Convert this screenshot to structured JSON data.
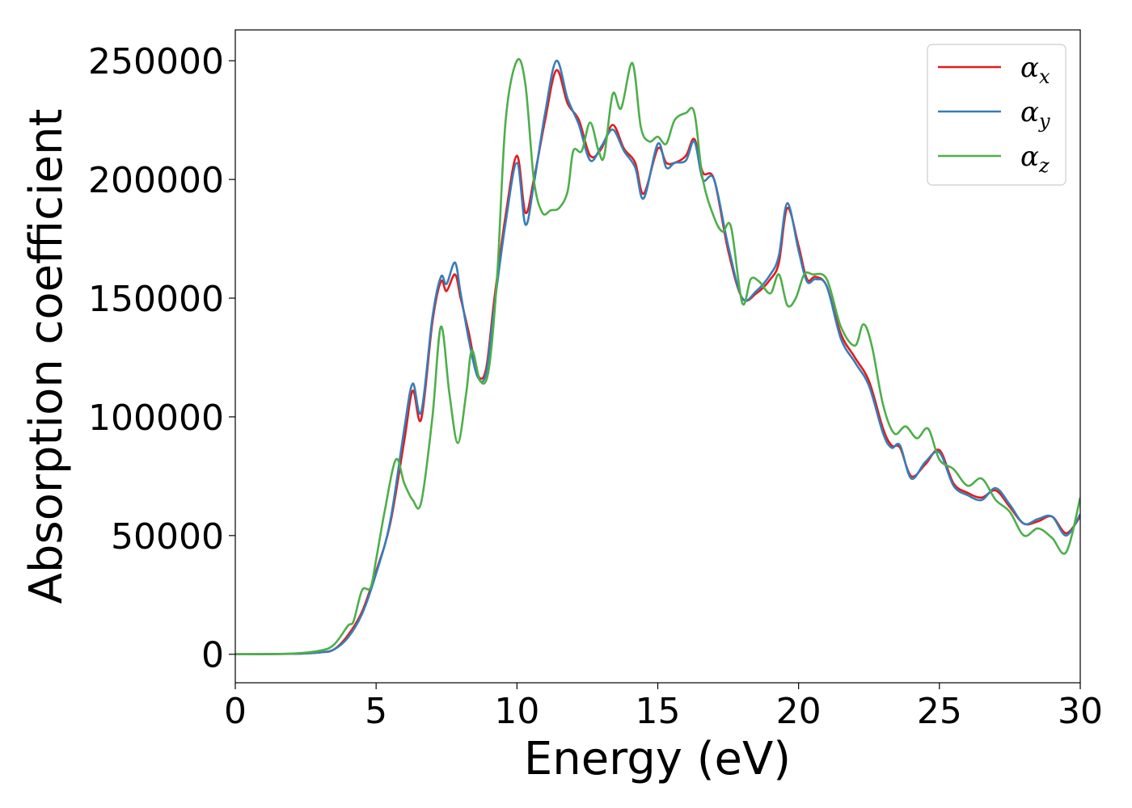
{
  "chart_data": {
    "type": "line",
    "title": "",
    "xlabel": "Energy (eV)",
    "ylabel": "Absorption coefficient",
    "xlim": [
      0,
      30
    ],
    "ylim": [
      -12000,
      263000
    ],
    "xticks": [
      0,
      5,
      10,
      15,
      20,
      25,
      30
    ],
    "yticks": [
      0,
      50000,
      100000,
      150000,
      200000,
      250000
    ],
    "grid": false,
    "legend_position": "top-right",
    "series": [
      {
        "name": "α",
        "subscript": "x",
        "color": "#e41a1c",
        "x": [
          0,
          2,
          3,
          3.5,
          4,
          4.5,
          5,
          5.5,
          6,
          6.3,
          6.6,
          7,
          7.3,
          7.5,
          7.8,
          8,
          8.3,
          8.6,
          8.9,
          9.2,
          9.6,
          10,
          10.3,
          10.6,
          11,
          11.4,
          11.8,
          12.2,
          12.6,
          13,
          13.4,
          13.8,
          14.2,
          14.5,
          15,
          15.3,
          15.6,
          16,
          16.3,
          16.6,
          17,
          17.5,
          18,
          18.5,
          19,
          19.3,
          19.6,
          20,
          20.3,
          20.6,
          21,
          21.5,
          22,
          22.5,
          23,
          23.3,
          23.6,
          24,
          24.5,
          25,
          25.5,
          26,
          26.5,
          27,
          27.5,
          28,
          28.5,
          29,
          29.5,
          30
        ],
        "y": [
          0,
          200,
          800,
          2000,
          8000,
          18000,
          35000,
          55000,
          90000,
          111000,
          99000,
          140000,
          157000,
          153000,
          160000,
          150000,
          135000,
          118000,
          120000,
          150000,
          185000,
          210000,
          186000,
          200000,
          225000,
          246000,
          232000,
          225000,
          210000,
          213000,
          223000,
          213000,
          207000,
          194000,
          213000,
          207000,
          207000,
          210000,
          217000,
          203000,
          200000,
          170000,
          150000,
          152000,
          158000,
          165000,
          188000,
          172000,
          158000,
          159000,
          155000,
          135000,
          125000,
          115000,
          95000,
          88000,
          87000,
          75000,
          80000,
          86000,
          72000,
          68000,
          66000,
          69000,
          62000,
          55000,
          56000,
          58000,
          51000,
          58000
        ]
      },
      {
        "name": "α",
        "subscript": "y",
        "color": "#377eb8",
        "x": [
          0,
          2,
          3,
          3.5,
          4,
          4.5,
          5,
          5.5,
          6,
          6.3,
          6.6,
          7,
          7.3,
          7.5,
          7.8,
          8,
          8.3,
          8.6,
          8.9,
          9.2,
          9.6,
          10,
          10.3,
          10.6,
          11,
          11.4,
          11.8,
          12.2,
          12.6,
          13,
          13.4,
          13.8,
          14.2,
          14.5,
          15,
          15.3,
          15.6,
          16,
          16.3,
          16.6,
          17,
          17.5,
          18,
          18.5,
          19,
          19.3,
          19.6,
          20,
          20.3,
          20.6,
          21,
          21.5,
          22,
          22.5,
          23,
          23.3,
          23.6,
          24,
          24.5,
          25,
          25.5,
          26,
          26.5,
          27,
          27.5,
          28,
          28.5,
          29,
          29.5,
          30
        ],
        "y": [
          0,
          200,
          800,
          2000,
          7000,
          17000,
          34000,
          56000,
          95000,
          114000,
          102000,
          142000,
          159000,
          156000,
          165000,
          152000,
          132000,
          117000,
          118000,
          147000,
          182000,
          207000,
          181000,
          198000,
          228000,
          250000,
          234000,
          223000,
          208000,
          214000,
          221000,
          212000,
          205000,
          192000,
          215000,
          205000,
          207000,
          208000,
          216000,
          200000,
          200000,
          172000,
          150000,
          153000,
          160000,
          168000,
          190000,
          170000,
          157000,
          158000,
          155000,
          133000,
          123000,
          113000,
          93000,
          87000,
          88000,
          74000,
          81000,
          85000,
          71000,
          67000,
          65000,
          70000,
          63000,
          55000,
          57000,
          58000,
          50000,
          59000
        ]
      },
      {
        "name": "α",
        "subscript": "z",
        "color": "#4daf4a",
        "x": [
          0,
          2,
          3,
          3.5,
          4,
          4.2,
          4.5,
          4.8,
          5,
          5.3,
          5.7,
          6,
          6.3,
          6.6,
          7,
          7.3,
          7.6,
          7.9,
          8.2,
          8.4,
          8.7,
          9,
          9.3,
          9.6,
          10,
          10.3,
          10.6,
          10.9,
          11.2,
          11.5,
          11.8,
          12,
          12.3,
          12.6,
          12.9,
          13.1,
          13.4,
          13.7,
          14.1,
          14.4,
          14.7,
          15,
          15.3,
          15.6,
          16,
          16.3,
          16.6,
          17,
          17.3,
          17.6,
          18,
          18.3,
          18.6,
          19,
          19.3,
          19.6,
          19.9,
          20.2,
          20.5,
          21,
          21.5,
          22,
          22.3,
          22.6,
          23,
          23.4,
          23.8,
          24.2,
          24.6,
          25,
          25.5,
          26,
          26.5,
          27,
          27.5,
          28,
          28.5,
          29,
          29.5,
          30
        ],
        "y": [
          0,
          300,
          1500,
          4000,
          12000,
          14000,
          27000,
          28000,
          40000,
          60000,
          82000,
          72000,
          65000,
          64000,
          100000,
          138000,
          110000,
          89000,
          110000,
          128000,
          115000,
          120000,
          160000,
          225000,
          250000,
          240000,
          200000,
          186000,
          187000,
          188000,
          195000,
          212000,
          212000,
          224000,
          212000,
          210000,
          236000,
          230000,
          249000,
          222000,
          216000,
          218000,
          215000,
          225000,
          228000,
          228000,
          200000,
          184000,
          178000,
          180000,
          148000,
          158000,
          157000,
          152000,
          160000,
          147000,
          150000,
          160000,
          160000,
          158000,
          138000,
          130000,
          139000,
          130000,
          105000,
          93000,
          96000,
          91000,
          95000,
          82000,
          78000,
          71000,
          74000,
          65000,
          60000,
          50000,
          53000,
          49000,
          43000,
          66000
        ]
      }
    ]
  }
}
